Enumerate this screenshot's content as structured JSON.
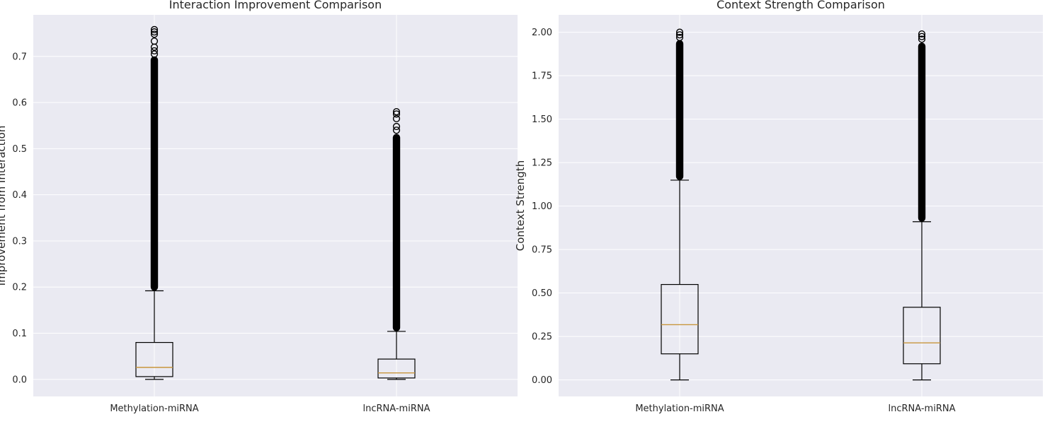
{
  "chart_data": [
    {
      "type": "box",
      "title": "Interaction Improvement Comparison",
      "ylabel": "Improvement from Interaction",
      "xlabel": "",
      "categories": [
        "Methylation-miRNA",
        "lncRNA-miRNA"
      ],
      "ylim": [
        -0.037,
        0.79
      ],
      "yticks": [
        0.0,
        0.1,
        0.2,
        0.3,
        0.4,
        0.5,
        0.6,
        0.7
      ],
      "ytick_labels": [
        "0.0",
        "0.1",
        "0.2",
        "0.3",
        "0.4",
        "0.5",
        "0.6",
        "0.7"
      ],
      "grid": true,
      "boxes": [
        {
          "category": "Methylation-miRNA",
          "whislo": 0.0,
          "q1": 0.006,
          "med": 0.026,
          "q3": 0.08,
          "whishi": 0.192,
          "flier_min": 0.192,
          "flier_max": 0.7,
          "sparse_fliers": [
            0.705,
            0.712,
            0.72,
            0.733,
            0.748,
            0.753,
            0.758
          ]
        },
        {
          "category": "lncRNA-miRNA",
          "whislo": 0.0,
          "q1": 0.003,
          "med": 0.014,
          "q3": 0.044,
          "whishi": 0.104,
          "flier_min": 0.104,
          "flier_max": 0.532,
          "sparse_fliers": [
            0.54,
            0.548,
            0.565,
            0.575,
            0.58
          ]
        }
      ]
    },
    {
      "type": "box",
      "title": "Context Strength Comparison",
      "ylabel": "Context Strength",
      "xlabel": "",
      "categories": [
        "Methylation-miRNA",
        "lncRNA-miRNA"
      ],
      "ylim": [
        -0.095,
        2.1
      ],
      "yticks": [
        0.0,
        0.25,
        0.5,
        0.75,
        1.0,
        1.25,
        1.5,
        1.75,
        2.0
      ],
      "ytick_labels": [
        "0.00",
        "0.25",
        "0.50",
        "0.75",
        "1.00",
        "1.25",
        "1.50",
        "1.75",
        "2.00"
      ],
      "grid": true,
      "boxes": [
        {
          "category": "Methylation-miRNA",
          "whislo": 0.0,
          "q1": 0.15,
          "med": 0.318,
          "q3": 0.549,
          "whishi": 1.149,
          "flier_min": 1.149,
          "flier_max": 1.955,
          "sparse_fliers": [
            1.97,
            1.985,
            2.0
          ]
        },
        {
          "category": "lncRNA-miRNA",
          "whislo": 0.0,
          "q1": 0.093,
          "med": 0.213,
          "q3": 0.418,
          "whishi": 0.91,
          "flier_min": 0.91,
          "flier_max": 1.94,
          "sparse_fliers": [
            1.96,
            1.975,
            1.99
          ]
        }
      ]
    }
  ],
  "colors": {
    "face": "#eaeaf2",
    "grid": "#ffffff",
    "box": "#000000",
    "median": "#c8963c",
    "text": "#262626"
  }
}
